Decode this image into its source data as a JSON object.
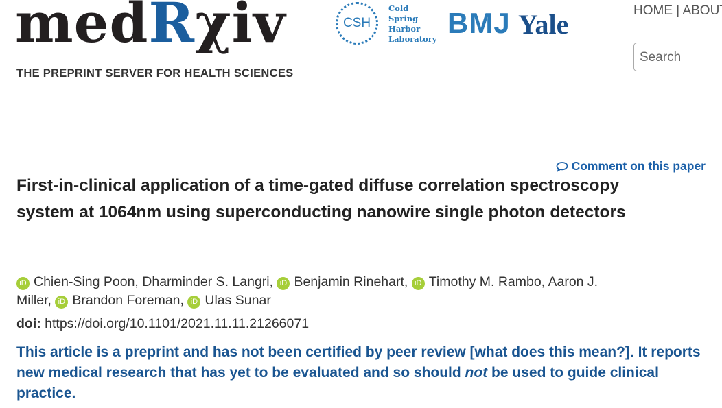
{
  "header": {
    "logo": {
      "prefix": "med",
      "r": "R",
      "suffix": "χiv"
    },
    "tagline": "THE PREPRINT SERVER FOR HEALTH SCIENCES",
    "partners": {
      "csh": "CSH",
      "csh_lines": [
        "Cold",
        "Spring",
        "Harbor",
        "Laboratory"
      ],
      "bmj": "BMJ",
      "yale": "Yale"
    },
    "nav": [
      "HOME",
      "|",
      "ABOUT"
    ],
    "search_placeholder": "Search"
  },
  "article": {
    "comment_link": "Comment on this paper",
    "title": "First-in-clinical application of a time-gated diffuse correlation spectroscopy system at 1064nm using superconducting nanowire single photon detectors",
    "orcid_icon": "iD",
    "authors": [
      {
        "name": "Chien-Sing Poon,",
        "orcid": true
      },
      {
        "name": "Dharminder S. Langri,",
        "orcid": false
      },
      {
        "name": "Benjamin Rinehart,",
        "orcid": true
      },
      {
        "name": "Timothy M. Rambo,",
        "orcid": true
      },
      {
        "name": "Aaron J. Miller,",
        "orcid": false
      },
      {
        "name": "Brandon Foreman,",
        "orcid": true
      },
      {
        "name": "Ulas Sunar",
        "orcid": true
      }
    ],
    "doi_label": "doi:",
    "doi": "https://doi.org/10.1101/2021.11.11.21266071",
    "notice": {
      "before": "This article is a preprint and has not been certified by peer review [",
      "link": "what does this mean?",
      "middle": "]. It reports new medical research that has yet to be evaluated and so should ",
      "emphasis": "not",
      "after": " be used to guide clinical practice."
    }
  }
}
